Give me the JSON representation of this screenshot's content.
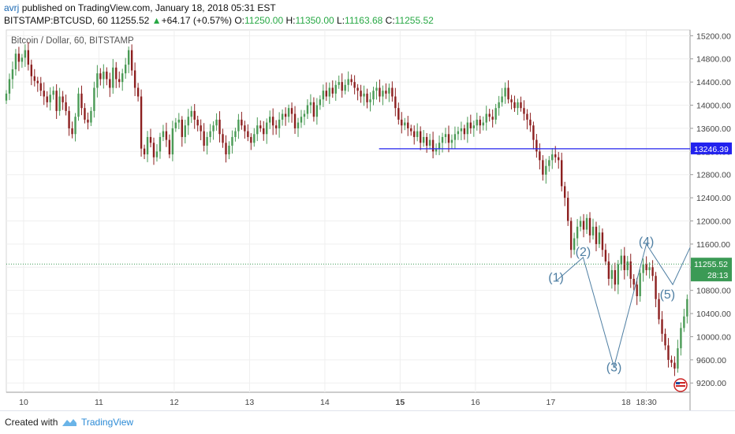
{
  "header": {
    "user": "avrj",
    "published_text": "published on TradingView.com, January 18, 2018 05:31 EST",
    "symbol": "BITSTAMP:BTCUSD, 60",
    "last": "11255.52",
    "change": "+64.17 (+0.57%)",
    "open_label": "O:",
    "open": "11250.00",
    "high_label": "H:",
    "high": "11350.00",
    "low_label": "L:",
    "low": "11163.68",
    "close_label": "C:",
    "close": "11255.52"
  },
  "chart_title": "Bitcoin / Dollar, 60, BITSTAMP",
  "footer": {
    "created_with": "Created with",
    "brand": "TradingView"
  },
  "colors": {
    "up": "#4a9a55",
    "down": "#8c1f1f",
    "line": "#2222ee",
    "wave": "#4f7fa3",
    "last_badge": "#3b9a55",
    "line_badge": "#2222ee"
  },
  "chart_data": {
    "type": "candlestick",
    "y_ticks": [
      9200,
      9600,
      10000,
      10400,
      10800,
      11200,
      11600,
      12000,
      12400,
      12800,
      13200,
      13600,
      14000,
      14400,
      14800,
      15200
    ],
    "y_tick_labels": [
      "9200.00",
      "9600.00",
      "10000.00",
      "10400.00",
      "10800.00",
      "11200.00",
      "11600.00",
      "12000.00",
      "12400.00",
      "12800.00",
      "13200.00",
      "13600.00",
      "14000.00",
      "14400.00",
      "14800.00",
      "15200.00"
    ],
    "x_tick_labels": [
      "10",
      "11",
      "12",
      "13",
      "14",
      "15",
      "16",
      "17",
      "18",
      "18:30"
    ],
    "x_ticks_day": [
      10,
      11,
      12,
      13,
      14,
      15,
      16,
      17,
      18,
      18.27
    ],
    "x_range_day": [
      9.77,
      18.85
    ],
    "y_range": [
      9040,
      15300
    ],
    "last_price": 11255.52,
    "last_price_label": "11255.52",
    "countdown": "28:13",
    "horizontal_line": {
      "price": 13246.39,
      "label": "13246.39",
      "from_day": 14.72
    },
    "wave_labels": [
      {
        "text": "(1)",
        "day": 17.07,
        "price": 10950
      },
      {
        "text": "(2)",
        "day": 17.43,
        "price": 11395
      },
      {
        "text": "(3)",
        "day": 17.84,
        "price": 9400
      },
      {
        "text": "(4)",
        "day": 18.27,
        "price": 11570
      },
      {
        "text": "(5)",
        "day": 18.55,
        "price": 10660
      }
    ],
    "wave_path": [
      {
        "day": 17.07,
        "price": 10960
      },
      {
        "day": 17.43,
        "price": 11370
      },
      {
        "day": 17.84,
        "price": 9480
      },
      {
        "day": 18.27,
        "price": 11600
      },
      {
        "day": 18.62,
        "price": 10900
      },
      {
        "day": 18.85,
        "price": 11540
      }
    ],
    "candles": {
      "start_day": 9.77,
      "step_day": 0.041667,
      "closes": [
        14200,
        14450,
        14620,
        14890,
        14750,
        14820,
        14950,
        14700,
        14500,
        14420,
        14380,
        14250,
        14150,
        14050,
        14180,
        14250,
        13900,
        14150,
        14050,
        13900,
        13600,
        13500,
        13800,
        14200,
        13950,
        13750,
        13700,
        13900,
        14300,
        14550,
        14450,
        14580,
        14450,
        14300,
        14650,
        14450,
        14400,
        14550,
        14700,
        14950,
        14600,
        14300,
        14150,
        13250,
        13150,
        13450,
        13350,
        13100,
        13200,
        13450,
        13550,
        13400,
        13150,
        13600,
        13700,
        13750,
        13450,
        13650,
        13800,
        13900,
        13750,
        13650,
        13550,
        13300,
        13450,
        13550,
        13650,
        13750,
        13500,
        13350,
        13150,
        13300,
        13450,
        13550,
        13750,
        13650,
        13550,
        13450,
        13350,
        13500,
        13650,
        13600,
        13500,
        13700,
        13800,
        13650,
        13600,
        13750,
        13850,
        13800,
        13950,
        13850,
        13600,
        13700,
        13800,
        13850,
        14000,
        14050,
        13800,
        14000,
        14100,
        14250,
        14150,
        14300,
        14200,
        14350,
        14400,
        14250,
        14350,
        14450,
        14400,
        14300,
        14250,
        14150,
        14200,
        14050,
        14100,
        14250,
        14300,
        14150,
        14250,
        14200,
        14300,
        14150,
        13950,
        13750,
        13650,
        13700,
        13600,
        13550,
        13450,
        13550,
        13350,
        13450,
        13300,
        13400,
        13200,
        13250,
        13350,
        13450,
        13500,
        13350,
        13400,
        13500,
        13550,
        13600,
        13500,
        13700,
        13600,
        13650,
        13750,
        13650,
        13700,
        13850,
        13800,
        13750,
        13950,
        14050,
        14150,
        14300,
        14100,
        14050,
        13950,
        14050,
        13950,
        13850,
        13750,
        13650,
        13400,
        13200,
        13050,
        12800,
        12950,
        13050,
        13150,
        13100,
        13050,
        12600,
        12400,
        12000,
        11500,
        11700,
        11900,
        12000,
        11850,
        12050,
        11750,
        11900,
        11600,
        11800,
        11500,
        11300,
        11000,
        11150,
        10900,
        11250,
        11400,
        11150,
        11300,
        11000,
        10900,
        10700,
        11100,
        11250,
        11150,
        11200,
        11050,
        10650,
        10300,
        10050,
        9850,
        9600,
        9550,
        9450,
        9800,
        10150,
        10350,
        10650,
        11150,
        11350,
        11450,
        11600,
        11450,
        11300,
        11150,
        11050,
        11250,
        11255.52
      ],
      "highs": [],
      "lows": []
    }
  }
}
